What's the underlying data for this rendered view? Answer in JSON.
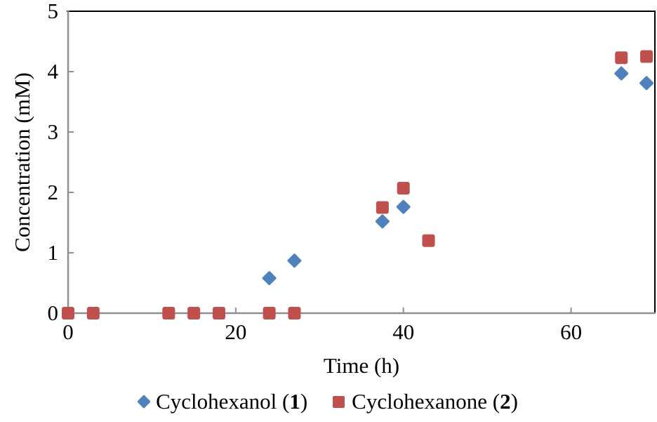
{
  "legend": {
    "items": [
      {
        "pre": "Cyclohexanol (",
        "num": "1",
        "post": ")"
      },
      {
        "pre": "Cyclohexanone (",
        "num": "2",
        "post": ")"
      }
    ]
  },
  "chart_data": {
    "type": "scatter",
    "title": "",
    "xlabel": "Time (h)",
    "ylabel": "Concentration (mM)",
    "x_range": [
      0,
      70
    ],
    "y_range": [
      0,
      5
    ],
    "x_ticks": [
      0,
      20,
      40,
      60
    ],
    "y_ticks": [
      0,
      1,
      2,
      3,
      4,
      5
    ],
    "grid": false,
    "legend_position": "bottom",
    "axis_color": "#8f8f8f",
    "border_color": "#000000",
    "series": [
      {
        "name": "Cyclohexanol (1)",
        "marker": "diamond",
        "color": "#4F81BD",
        "points": [
          [
            24,
            0.58
          ],
          [
            27,
            0.87
          ],
          [
            37.5,
            1.52
          ],
          [
            40,
            1.76
          ],
          [
            66,
            3.97
          ],
          [
            69,
            3.81
          ]
        ]
      },
      {
        "name": "Cyclohexanone (2)",
        "marker": "square",
        "color": "#C0504D",
        "points": [
          [
            0,
            0
          ],
          [
            3,
            0
          ],
          [
            12,
            0
          ],
          [
            15,
            0
          ],
          [
            18,
            0
          ],
          [
            24,
            0
          ],
          [
            27,
            0
          ],
          [
            37.5,
            1.75
          ],
          [
            40,
            2.07
          ],
          [
            43,
            1.2
          ],
          [
            66,
            4.23
          ],
          [
            69,
            4.25
          ]
        ]
      }
    ]
  }
}
